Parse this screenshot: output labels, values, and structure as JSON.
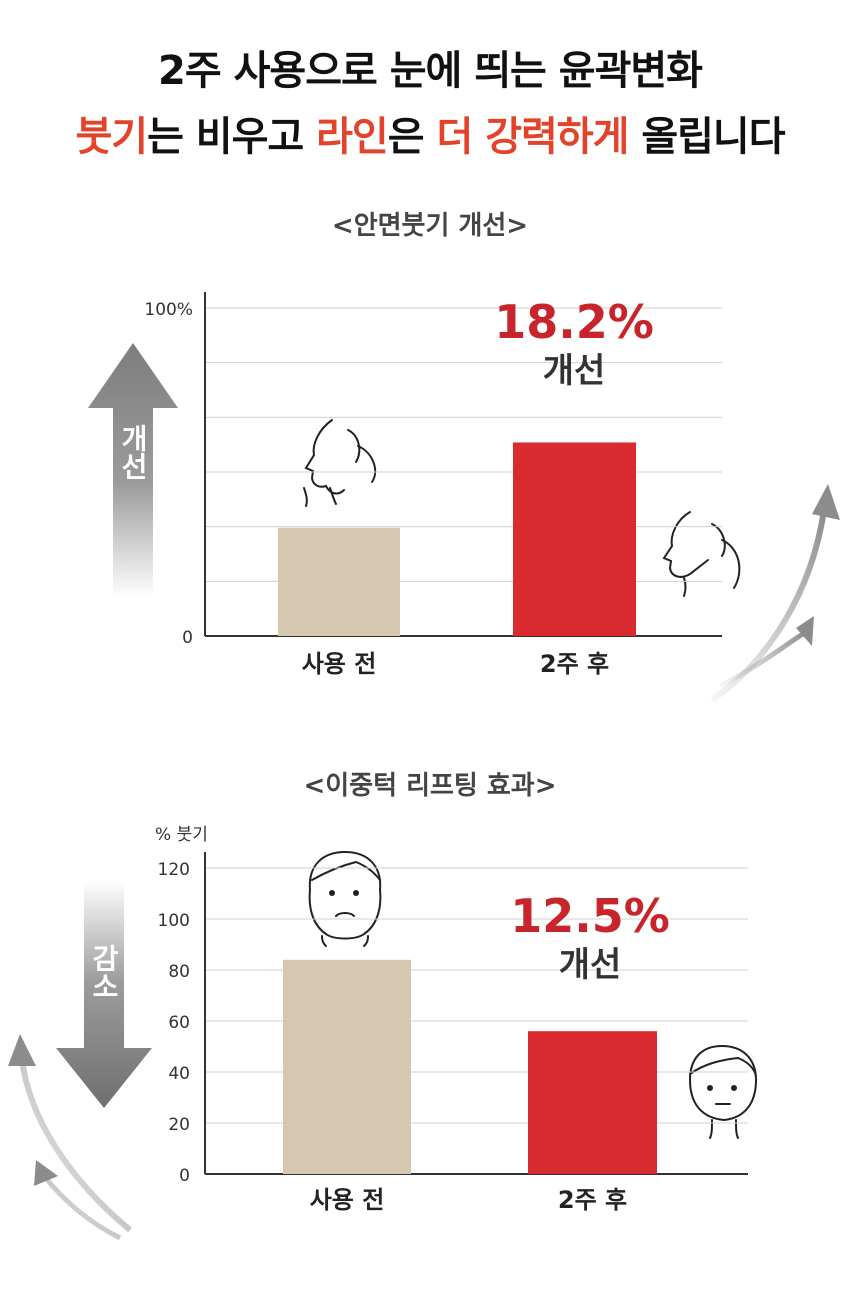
{
  "headline": {
    "line1": "2주 사용으로 눈에 띄는 윤곽변화",
    "line2_parts": [
      {
        "text": "붓기",
        "accent": true
      },
      {
        "text": "는 비우고 ",
        "accent": false
      },
      {
        "text": "라인",
        "accent": true
      },
      {
        "text": "은 ",
        "accent": false
      },
      {
        "text": "더 강력하게",
        "accent": true
      },
      {
        "text": " 올립니다",
        "accent": false
      }
    ]
  },
  "colors": {
    "accent": "#e4432b",
    "bar_before": "#d6c7b1",
    "bar_after": "#d92b2f",
    "highlight": "#c8242c",
    "arrow_gray": "#8a8a8a"
  },
  "chart_data": [
    {
      "type": "bar",
      "title": "<안면붓기 개선>",
      "categories": [
        "사용 전",
        "2주 후"
      ],
      "values": [
        33,
        59
      ],
      "ylim": [
        0,
        100
      ],
      "y_tick_labels": [
        "0",
        "100%"
      ],
      "grid": true,
      "annotation": {
        "value": "18.2%",
        "label": "개선"
      },
      "side_arrow": {
        "label": "개선",
        "direction": "up"
      },
      "icons": [
        "face-profile-before-icon",
        "face-profile-after-icon",
        "curved-arrow-up-icon"
      ]
    },
    {
      "type": "bar",
      "title": "<이중턱 리프팅 효과>",
      "unit_label": "% 붓기",
      "categories": [
        "사용 전",
        "2주 후"
      ],
      "values": [
        84,
        56
      ],
      "ylim": [
        0,
        120
      ],
      "y_ticks": [
        "0",
        "20",
        "40",
        "60",
        "80",
        "100",
        "120"
      ],
      "grid": true,
      "annotation": {
        "value": "12.5%",
        "label": "개선"
      },
      "side_arrow": {
        "label": "감소",
        "direction": "down"
      },
      "icons": [
        "face-front-before-icon",
        "face-front-after-icon",
        "curved-arrow-up-icon"
      ]
    }
  ]
}
